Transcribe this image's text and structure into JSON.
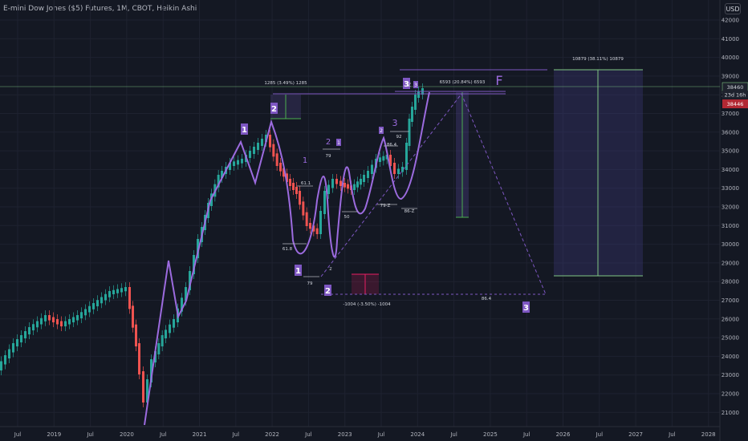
{
  "header": {
    "title": "E-mini Dow Jones ($5) Futures, 1M, CBOT, Heikin Ashi",
    "currency": "USD"
  },
  "colors": {
    "background": "#141823",
    "up": "#26a69a",
    "down": "#ef5350",
    "purple": "#7e57c2",
    "purple_bright": "#9c6bdf",
    "target_line": "#81c784",
    "red_marker": "#e91e63"
  },
  "price_axis": {
    "ticks": [
      "42000",
      "41000",
      "40000",
      "39000",
      "38000",
      "37000",
      "36000",
      "35000",
      "34000",
      "33000",
      "32000",
      "31000",
      "30000",
      "29000",
      "28000",
      "27000",
      "26000",
      "25000",
      "24000",
      "23000",
      "22000",
      "21000"
    ],
    "current_price": "38460",
    "countdown": "23d 16h",
    "last_price": "38446"
  },
  "time_axis": {
    "ticks": [
      "Jul",
      "2019",
      "Jul",
      "2020",
      "Jul",
      "2021",
      "Jul",
      "2022",
      "Jul",
      "2023",
      "Jul",
      "2024",
      "Jul",
      "2025",
      "Jul",
      "2026",
      "Jul",
      "2027",
      "Jul",
      "2028"
    ]
  },
  "measurements": {
    "m1": "1285 (3.49%) 1285",
    "m2": "6593 (20.84%) 6593",
    "m3": "10879 (38.11%) 10879",
    "m4": "-1004 (-3.50%) -1004"
  },
  "wave_labels": {
    "w1_top": "1",
    "w2_top": "2",
    "w3_top": "3",
    "w1_bottom": "1",
    "w2_bottom": "2",
    "w3_bottom": "3",
    "f": "F",
    "small_1": "1",
    "small_2": "2",
    "small_3": "3",
    "z": "z",
    "z2": "Z",
    "small_box_2": "2",
    "small_box_1": "1"
  },
  "fib_labels": {
    "f618": "61.8",
    "f79a": "79",
    "f79b": "79",
    "f611": "61.1",
    "f50": "50",
    "f79z": "79-Z",
    "f864": "86.4",
    "f86z": "86-Z",
    "f92": "92",
    "f864b": "86.4"
  }
}
